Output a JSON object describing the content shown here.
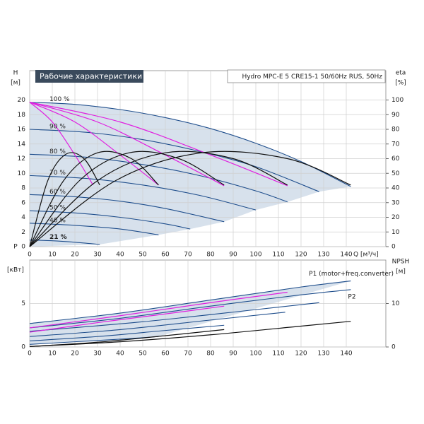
{
  "header": {
    "title": "Рабочие характеристики",
    "model": "Hydro MPC-E 5 CRE15-1 50/60Hz RUS, 50Hz"
  },
  "chart_data": [
    {
      "type": "line",
      "x_label": "Q [м³/ч]",
      "y_label": "H",
      "y_unit": "[м]",
      "y2_label": "eta",
      "y2_unit": "[%]",
      "xlim": [
        0,
        157.5
      ],
      "xticks": [
        0,
        10,
        20,
        30,
        40,
        50,
        60,
        70,
        80,
        90,
        100,
        110,
        120,
        130,
        140
      ],
      "ylim": [
        0,
        24
      ],
      "yticks": [
        0,
        2,
        4,
        6,
        8,
        10,
        12,
        14,
        16,
        18,
        20
      ],
      "y2lim": [
        0,
        120
      ],
      "y2ticks": [
        0,
        10,
        20,
        30,
        40,
        50,
        60,
        70,
        80,
        90,
        100
      ],
      "grid": true,
      "series": [
        {
          "name": "100 %",
          "color": "#1f4e8c",
          "x": [
            0,
            20,
            40,
            60,
            80,
            100,
            120,
            142
          ],
          "values": [
            19.7,
            19.4,
            18.7,
            17.6,
            16.1,
            14.1,
            11.6,
            8.2
          ]
        },
        {
          "name": "90 %",
          "color": "#1f4e8c",
          "x": [
            0,
            25,
            50,
            75,
            100,
            128
          ],
          "values": [
            16.0,
            15.6,
            14.6,
            13.0,
            10.9,
            7.5
          ]
        },
        {
          "name": "80 %",
          "color": "#1f4e8c",
          "x": [
            0,
            25,
            50,
            75,
            100,
            114
          ],
          "values": [
            12.6,
            12.2,
            11.2,
            9.7,
            7.6,
            6.1
          ]
        },
        {
          "name": "70 %",
          "color": "#1f4e8c",
          "x": [
            0,
            25,
            50,
            75,
            100
          ],
          "values": [
            9.7,
            9.3,
            8.4,
            7.0,
            5.0
          ]
        },
        {
          "name": "60 %",
          "color": "#1f4e8c",
          "x": [
            0,
            20,
            40,
            60,
            86
          ],
          "values": [
            7.1,
            6.8,
            6.2,
            5.2,
            3.4
          ]
        },
        {
          "name": "50 %",
          "color": "#1f4e8c",
          "x": [
            0,
            20,
            40,
            60,
            71
          ],
          "values": [
            4.9,
            4.6,
            4.0,
            3.1,
            2.4
          ]
        },
        {
          "name": "40 %",
          "color": "#1f4e8c",
          "x": [
            0,
            20,
            40,
            57
          ],
          "values": [
            3.2,
            2.9,
            2.4,
            1.6
          ]
        },
        {
          "name": "21 %",
          "color": "#1f4e8c",
          "x": [
            0,
            10,
            20,
            31
          ],
          "values": [
            0.9,
            0.8,
            0.6,
            0.3
          ]
        },
        {
          "color": "#e020e0",
          "x": [
            0,
            10,
            20,
            28
          ],
          "values": [
            19.7,
            17,
            12.5,
            8.4
          ]
        },
        {
          "color": "#e020e0",
          "x": [
            0,
            20,
            40,
            57
          ],
          "values": [
            19.7,
            17,
            12.5,
            8.4
          ]
        },
        {
          "color": "#e020e0",
          "x": [
            0,
            30,
            60,
            86
          ],
          "values": [
            19.7,
            17,
            12.5,
            8.3
          ]
        },
        {
          "color": "#e020e0",
          "x": [
            0,
            40,
            80,
            114
          ],
          "values": [
            19.7,
            17,
            12.5,
            8.3
          ]
        },
        {
          "color": "#111111",
          "axis": "y2",
          "x": [
            0,
            8,
            16,
            24,
            31
          ],
          "values": [
            0,
            45,
            63,
            60,
            42
          ]
        },
        {
          "color": "#111111",
          "axis": "y2",
          "x": [
            0,
            15,
            30,
            45,
            57
          ],
          "values": [
            0,
            45,
            64,
            60,
            42
          ]
        },
        {
          "color": "#111111",
          "axis": "y2",
          "x": [
            0,
            22,
            44,
            66,
            86
          ],
          "values": [
            0,
            45,
            64,
            60,
            42
          ]
        },
        {
          "color": "#111111",
          "axis": "y2",
          "x": [
            0,
            30,
            60,
            90,
            114
          ],
          "values": [
            0,
            45,
            64,
            60,
            42
          ]
        },
        {
          "color": "#111111",
          "axis": "y2",
          "x": [
            0,
            38,
            76,
            114,
            142
          ],
          "values": [
            0,
            45,
            64,
            60,
            42
          ]
        }
      ]
    },
    {
      "type": "line",
      "y_label": "P",
      "y_unit": "[кВт]",
      "y2_label": "NPSH",
      "y2_unit": "[м]",
      "xlim": [
        0,
        157.5
      ],
      "xticks": [
        0,
        10,
        20,
        30,
        40,
        50,
        60,
        70,
        80,
        90,
        100,
        110,
        120,
        130,
        140
      ],
      "ylim": [
        0,
        10
      ],
      "yticks": [
        0,
        5
      ],
      "y2lim": [
        0,
        20
      ],
      "y2ticks": [
        0,
        10
      ],
      "grid": true,
      "series": [
        {
          "name": "P1 (motor+freq.converter)",
          "color": "#1f4e8c",
          "x": [
            0,
            40,
            80,
            120,
            142
          ],
          "values": [
            2.7,
            3.9,
            5.4,
            6.9,
            7.6
          ]
        },
        {
          "name": "P2",
          "color": "#1f4e8c",
          "x": [
            0,
            40,
            80,
            120,
            142
          ],
          "values": [
            2.2,
            3.3,
            4.7,
            6.0,
            6.6
          ]
        },
        {
          "color": "#1f4e8c",
          "x": [
            0,
            50,
            100,
            128
          ],
          "values": [
            1.8,
            2.9,
            4.3,
            5.1
          ]
        },
        {
          "color": "#1f4e8c",
          "x": [
            0,
            40,
            80,
            113
          ],
          "values": [
            1.2,
            2.0,
            3.1,
            4.0
          ]
        },
        {
          "color": "#1f4e8c",
          "x": [
            0,
            30,
            60,
            86
          ],
          "values": [
            0.7,
            1.2,
            1.9,
            2.5
          ]
        },
        {
          "color": "#1f4e8c",
          "x": [
            0,
            20,
            40,
            57
          ],
          "values": [
            0.3,
            0.6,
            0.9,
            1.2
          ]
        },
        {
          "color": "#e020e0",
          "x": [
            0,
            40,
            80,
            114
          ],
          "values": [
            2.2,
            3.6,
            5.1,
            6.3
          ]
        },
        {
          "color": "#e020e0",
          "x": [
            0,
            30,
            60,
            86
          ],
          "values": [
            1.7,
            2.8,
            3.8,
            4.7
          ]
        },
        {
          "color": "#111111",
          "axis": "y2",
          "x": [
            0,
            40,
            80,
            120,
            142
          ],
          "values": [
            0.1,
            1.2,
            2.8,
            4.8,
            5.9
          ]
        },
        {
          "color": "#111111",
          "axis": "y2",
          "x": [
            0,
            30,
            60,
            86
          ],
          "values": [
            0.1,
            1.1,
            2.6,
            4.0
          ]
        }
      ]
    }
  ]
}
